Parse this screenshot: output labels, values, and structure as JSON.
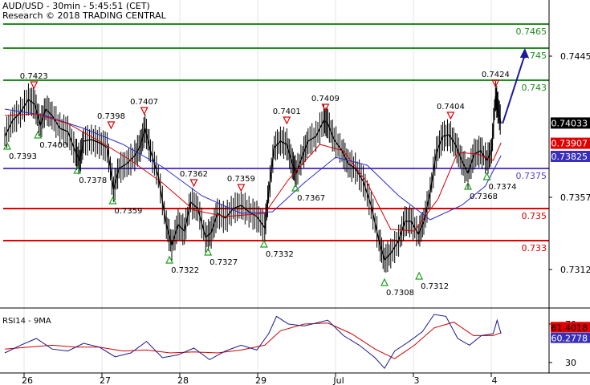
{
  "header": {
    "line1": "AUD/USD - 30min - 5:45:51 (CET)",
    "line2": "Research © 2018 TRADING CENTRAL"
  },
  "chart_data": [
    {
      "type": "line",
      "name": "price",
      "ylim": [
        0.729,
        0.7475
      ],
      "x_range": [
        0,
        640
      ],
      "price_axis_ticks": [
        "0.7445",
        "0.7357",
        "0.7312"
      ],
      "date_ticks": [
        {
          "label": "26",
          "x": 30
        },
        {
          "label": "27",
          "x": 127
        },
        {
          "label": "28",
          "x": 224
        },
        {
          "label": "29",
          "x": 321
        },
        {
          "label": "Jul",
          "x": 418
        },
        {
          "label": "3",
          "x": 515
        },
        {
          "label": "4",
          "x": 612
        }
      ],
      "pivot_lines": [
        {
          "value": 0.7465,
          "label": "0.7465",
          "color": "#228b22"
        },
        {
          "value": 0.745,
          "label": "0.745",
          "color": "#228b22"
        },
        {
          "value": 0.743,
          "label": "0.743",
          "color": "#228b22"
        },
        {
          "value": 0.7375,
          "label": "0.7375",
          "color": "#5b3fc8"
        },
        {
          "value": 0.735,
          "label": "0.735",
          "color": "#e00000"
        },
        {
          "value": 0.733,
          "label": "0.733",
          "color": "#e00000"
        }
      ],
      "last_price_labels": [
        {
          "value": 0.74033,
          "label": "0.74033",
          "bg": "#000000",
          "fg": "#ffffff"
        },
        {
          "value": 0.73907,
          "label": "0.73907",
          "bg": "#e00000",
          "fg": "#ffffff"
        },
        {
          "value": 0.73825,
          "label": "0.73825",
          "bg": "#3a2fb8",
          "fg": "#ffffff"
        }
      ],
      "close_series": [
        [
          0,
          0.7395
        ],
        [
          10,
          0.7405
        ],
        [
          20,
          0.741
        ],
        [
          30,
          0.7418
        ],
        [
          38,
          0.7415
        ],
        [
          45,
          0.7402
        ],
        [
          52,
          0.7412
        ],
        [
          60,
          0.7408
        ],
        [
          70,
          0.74
        ],
        [
          80,
          0.7398
        ],
        [
          90,
          0.7385
        ],
        [
          95,
          0.738
        ],
        [
          100,
          0.7392
        ],
        [
          110,
          0.7393
        ],
        [
          120,
          0.7391
        ],
        [
          130,
          0.7388
        ],
        [
          138,
          0.7362
        ],
        [
          145,
          0.7375
        ],
        [
          155,
          0.7378
        ],
        [
          165,
          0.7383
        ],
        [
          172,
          0.7389
        ],
        [
          178,
          0.74
        ],
        [
          185,
          0.7386
        ],
        [
          195,
          0.737
        ],
        [
          205,
          0.734
        ],
        [
          212,
          0.7327
        ],
        [
          220,
          0.734
        ],
        [
          228,
          0.7336
        ],
        [
          236,
          0.7354
        ],
        [
          245,
          0.735
        ],
        [
          255,
          0.7332
        ],
        [
          262,
          0.7335
        ],
        [
          270,
          0.7347
        ],
        [
          280,
          0.7344
        ],
        [
          290,
          0.735
        ],
        [
          300,
          0.7352
        ],
        [
          310,
          0.7348
        ],
        [
          320,
          0.7345
        ],
        [
          330,
          0.7338
        ],
        [
          335,
          0.736
        ],
        [
          342,
          0.7388
        ],
        [
          350,
          0.7392
        ],
        [
          358,
          0.739
        ],
        [
          365,
          0.7378
        ],
        [
          370,
          0.7372
        ],
        [
          378,
          0.7383
        ],
        [
          385,
          0.7392
        ],
        [
          395,
          0.7395
        ],
        [
          405,
          0.7405
        ],
        [
          410,
          0.7403
        ],
        [
          418,
          0.7393
        ],
        [
          428,
          0.7386
        ],
        [
          436,
          0.7378
        ],
        [
          445,
          0.7375
        ],
        [
          455,
          0.7367
        ],
        [
          465,
          0.7352
        ],
        [
          475,
          0.733
        ],
        [
          482,
          0.7318
        ],
        [
          490,
          0.7322
        ],
        [
          500,
          0.733
        ],
        [
          508,
          0.7342
        ],
        [
          516,
          0.7342
        ],
        [
          525,
          0.7334
        ],
        [
          532,
          0.7342
        ],
        [
          540,
          0.736
        ],
        [
          548,
          0.7385
        ],
        [
          556,
          0.7395
        ],
        [
          564,
          0.7396
        ],
        [
          572,
          0.739
        ],
        [
          580,
          0.738
        ],
        [
          588,
          0.7372
        ],
        [
          596,
          0.7384
        ],
        [
          604,
          0.7386
        ],
        [
          612,
          0.738
        ],
        [
          618,
          0.7386
        ],
        [
          623,
          0.742
        ],
        [
          626,
          0.7413
        ],
        [
          630,
          0.7403
        ]
      ],
      "ma_fast": [
        [
          0,
          0.7408
        ],
        [
          40,
          0.7409
        ],
        [
          80,
          0.7403
        ],
        [
          120,
          0.7392
        ],
        [
          160,
          0.738
        ],
        [
          200,
          0.7366
        ],
        [
          240,
          0.7349
        ],
        [
          280,
          0.7345
        ],
        [
          330,
          0.7347
        ],
        [
          360,
          0.7368
        ],
        [
          400,
          0.739
        ],
        [
          430,
          0.7386
        ],
        [
          460,
          0.7366
        ],
        [
          490,
          0.7337
        ],
        [
          520,
          0.7336
        ],
        [
          550,
          0.7356
        ],
        [
          575,
          0.7385
        ],
        [
          600,
          0.7384
        ],
        [
          620,
          0.738
        ],
        [
          630,
          0.7391
        ]
      ],
      "ma_slow": [
        [
          0,
          0.7412
        ],
        [
          50,
          0.7408
        ],
        [
          100,
          0.74
        ],
        [
          150,
          0.739
        ],
        [
          200,
          0.7376
        ],
        [
          250,
          0.7358
        ],
        [
          300,
          0.7347
        ],
        [
          340,
          0.7348
        ],
        [
          380,
          0.7366
        ],
        [
          420,
          0.7382
        ],
        [
          460,
          0.7377
        ],
        [
          500,
          0.7358
        ],
        [
          540,
          0.7343
        ],
        [
          580,
          0.7352
        ],
        [
          610,
          0.7364
        ],
        [
          630,
          0.7383
        ]
      ],
      "forecast_arrow": {
        "from": [
          632,
          0.7403
        ],
        "to": [
          648,
          0.745
        ]
      },
      "high_markers": [
        {
          "x": 37,
          "value": 0.7423,
          "label": "0.7423"
        },
        {
          "x": 135,
          "value": 0.7398,
          "label": "0.7398"
        },
        {
          "x": 177,
          "value": 0.7407,
          "label": "0.7407"
        },
        {
          "x": 240,
          "value": 0.7362,
          "label": "0.7362"
        },
        {
          "x": 300,
          "value": 0.7359,
          "label": "0.7359"
        },
        {
          "x": 358,
          "value": 0.7401,
          "label": "0.7401"
        },
        {
          "x": 407,
          "value": 0.7409,
          "label": "0.7409"
        },
        {
          "x": 566,
          "value": 0.7404,
          "label": "0.7404"
        },
        {
          "x": 623,
          "value": 0.7424,
          "label": "0.7424"
        }
      ],
      "low_markers": [
        {
          "x": 3,
          "value": 0.7393,
          "label": "0.7393"
        },
        {
          "x": 42,
          "value": 0.74,
          "label": "0.7400"
        },
        {
          "x": 92,
          "value": 0.7378,
          "label": "0.7378"
        },
        {
          "x": 137,
          "value": 0.7359,
          "label": "0.7359"
        },
        {
          "x": 209,
          "value": 0.7322,
          "label": "0.7322"
        },
        {
          "x": 258,
          "value": 0.7327,
          "label": "0.7327"
        },
        {
          "x": 329,
          "value": 0.7332,
          "label": "0.7332"
        },
        {
          "x": 369,
          "value": 0.7367,
          "label": "0.7367"
        },
        {
          "x": 482,
          "value": 0.7308,
          "label": "0.7308"
        },
        {
          "x": 526,
          "value": 0.7312,
          "label": "0.7312"
        },
        {
          "x": 588,
          "value": 0.7368,
          "label": "0.7368"
        },
        {
          "x": 612,
          "value": 0.7374,
          "label": "0.7374"
        }
      ],
      "colors": {
        "price": "#000000",
        "ma_fast": "#d40000",
        "ma_slow": "#2b2bd6",
        "arrow": "#1a1a9a",
        "axis": "#000000",
        "grid": "#e6e6e6",
        "marker_high": "#e00000",
        "marker_low": "#1f9f1f"
      }
    },
    {
      "type": "line",
      "name": "indicator",
      "title": "RSI14 - 9MA",
      "ylim": [
        20,
        80
      ],
      "ticks": [
        "70",
        "30"
      ],
      "value_labels": [
        {
          "value": 61.4018,
          "label": "61.4018",
          "bg": "#e00000",
          "fg": "#000000"
        },
        {
          "value": 60.2778,
          "label": "60.2778",
          "bg": "#3a2fb8",
          "fg": "#ffffff"
        }
      ],
      "rsi_series": [
        [
          0,
          40
        ],
        [
          20,
          48
        ],
        [
          40,
          55
        ],
        [
          60,
          44
        ],
        [
          80,
          42
        ],
        [
          100,
          50
        ],
        [
          120,
          46
        ],
        [
          140,
          36
        ],
        [
          160,
          40
        ],
        [
          180,
          52
        ],
        [
          200,
          35
        ],
        [
          220,
          38
        ],
        [
          240,
          45
        ],
        [
          260,
          33
        ],
        [
          280,
          42
        ],
        [
          300,
          48
        ],
        [
          320,
          43
        ],
        [
          335,
          60
        ],
        [
          345,
          78
        ],
        [
          360,
          70
        ],
        [
          380,
          68
        ],
        [
          400,
          72
        ],
        [
          410,
          74
        ],
        [
          430,
          58
        ],
        [
          450,
          48
        ],
        [
          470,
          35
        ],
        [
          482,
          24
        ],
        [
          495,
          42
        ],
        [
          510,
          50
        ],
        [
          530,
          62
        ],
        [
          545,
          80
        ],
        [
          560,
          78
        ],
        [
          575,
          55
        ],
        [
          590,
          48
        ],
        [
          605,
          58
        ],
        [
          620,
          60
        ],
        [
          625,
          74
        ],
        [
          630,
          60
        ]
      ],
      "ma_series": [
        [
          0,
          44
        ],
        [
          30,
          46
        ],
        [
          60,
          48
        ],
        [
          90,
          46
        ],
        [
          120,
          46
        ],
        [
          150,
          42
        ],
        [
          180,
          43
        ],
        [
          210,
          40
        ],
        [
          240,
          41
        ],
        [
          270,
          40
        ],
        [
          300,
          43
        ],
        [
          330,
          48
        ],
        [
          350,
          63
        ],
        [
          380,
          70
        ],
        [
          410,
          71
        ],
        [
          440,
          60
        ],
        [
          470,
          44
        ],
        [
          495,
          34
        ],
        [
          520,
          48
        ],
        [
          545,
          66
        ],
        [
          570,
          72
        ],
        [
          595,
          58
        ],
        [
          620,
          58
        ],
        [
          630,
          61
        ]
      ],
      "colors": {
        "rsi": "#1a1a8a",
        "ma": "#d40000"
      }
    }
  ]
}
